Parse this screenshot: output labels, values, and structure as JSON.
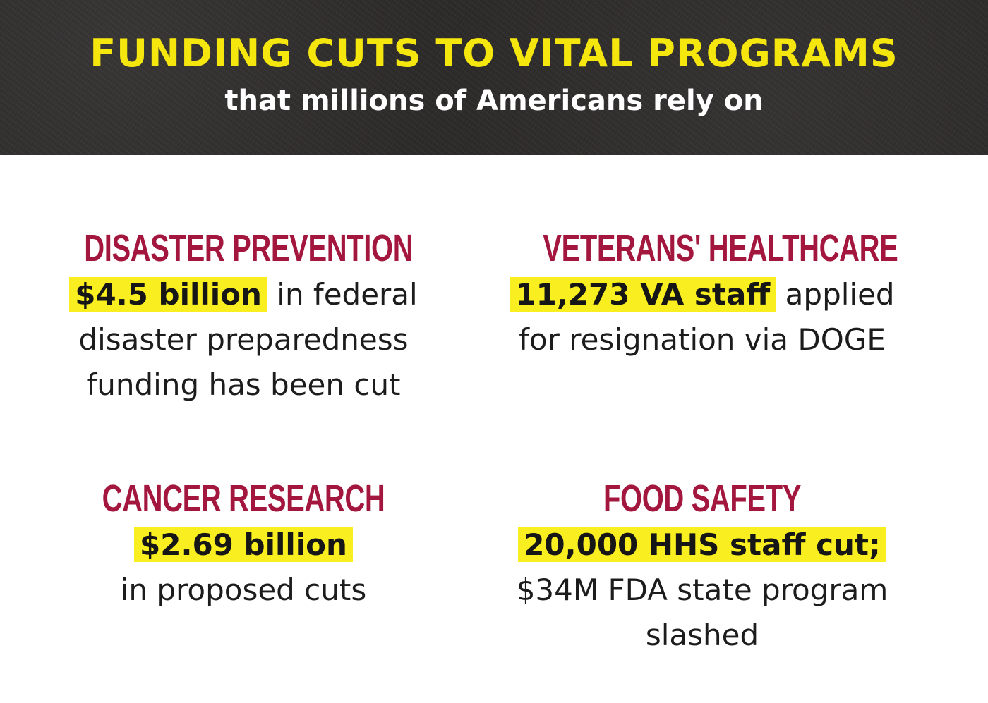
{
  "header": {
    "title": "FUNDING CUTS TO VITAL PROGRAMS",
    "subtitle": "that millions of Americans rely on"
  },
  "colors": {
    "header_bg": "#2e2b2b",
    "title": "#f5e60e",
    "heading": "#a3173f",
    "highlight": "#f9ee1f",
    "body_text": "#1c1c1c"
  },
  "cards": [
    {
      "heading": "DISASTER PREVENTION",
      "highlight": "$4.5 billion",
      "line1_rest": " in federal",
      "line2": "disaster preparedness",
      "line3": "funding has been cut"
    },
    {
      "heading": "VETERANS' HEALTHCARE",
      "highlight": "11,273 VA staff",
      "line1_rest": " applied",
      "line2": "for resignation via DOGE"
    },
    {
      "heading": "CANCER RESEARCH",
      "highlight": "$2.69 billion",
      "line2": "in proposed cuts"
    },
    {
      "heading": "FOOD SAFETY",
      "highlight": "20,000 HHS staff cut;",
      "line2": "$34M FDA state program",
      "line3": "slashed"
    }
  ]
}
